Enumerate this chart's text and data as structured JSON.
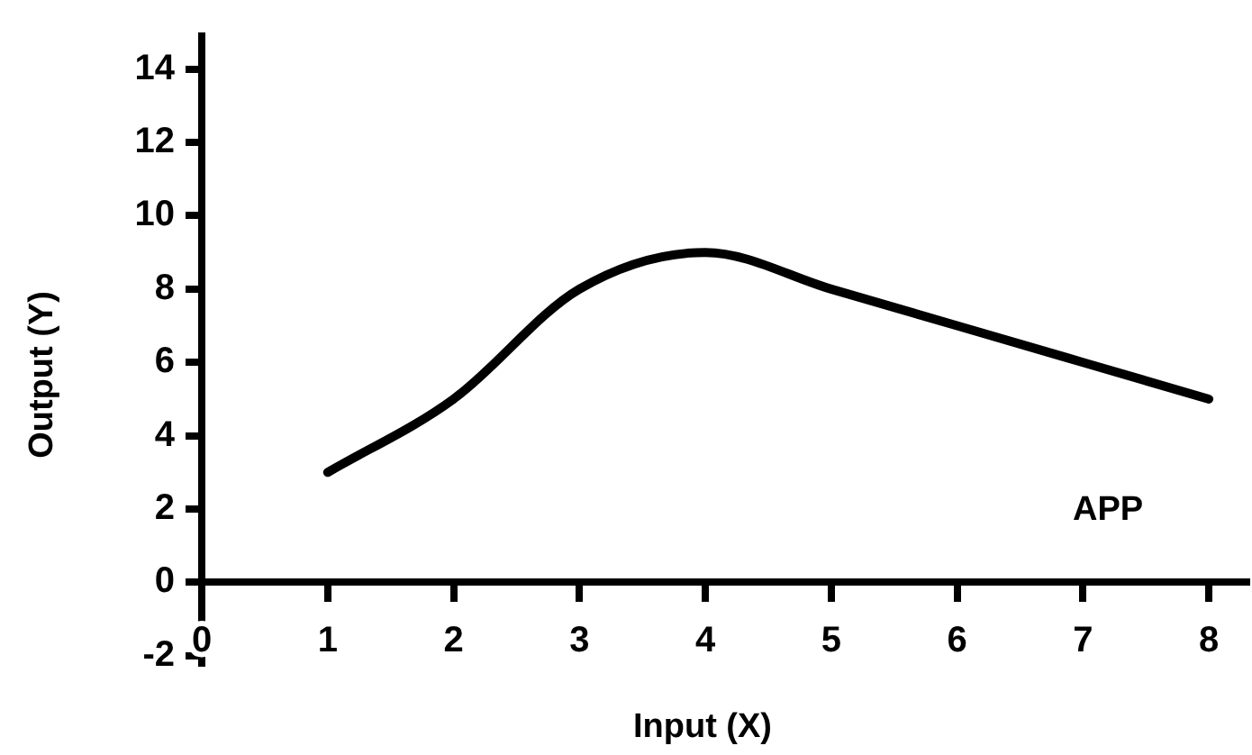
{
  "chart_data": {
    "type": "line",
    "xlabel": "Input (X)",
    "ylabel": "Output (Y)",
    "x": [
      1,
      2,
      3,
      4,
      5,
      6,
      7,
      8
    ],
    "series": [
      {
        "name": "APP",
        "color": "#000000",
        "values": [
          3,
          5,
          8,
          9,
          8,
          7,
          6,
          5
        ]
      }
    ],
    "xlim": [
      0,
      8.3
    ],
    "xticks": [
      0,
      1,
      2,
      3,
      4,
      5,
      6,
      7,
      8
    ],
    "ylim": [
      -2.3,
      15
    ],
    "yticks": [
      -2,
      0,
      2,
      4,
      6,
      8,
      10,
      12,
      14
    ],
    "grid": false,
    "legend": false,
    "marker": "none",
    "line_style": "solid"
  }
}
